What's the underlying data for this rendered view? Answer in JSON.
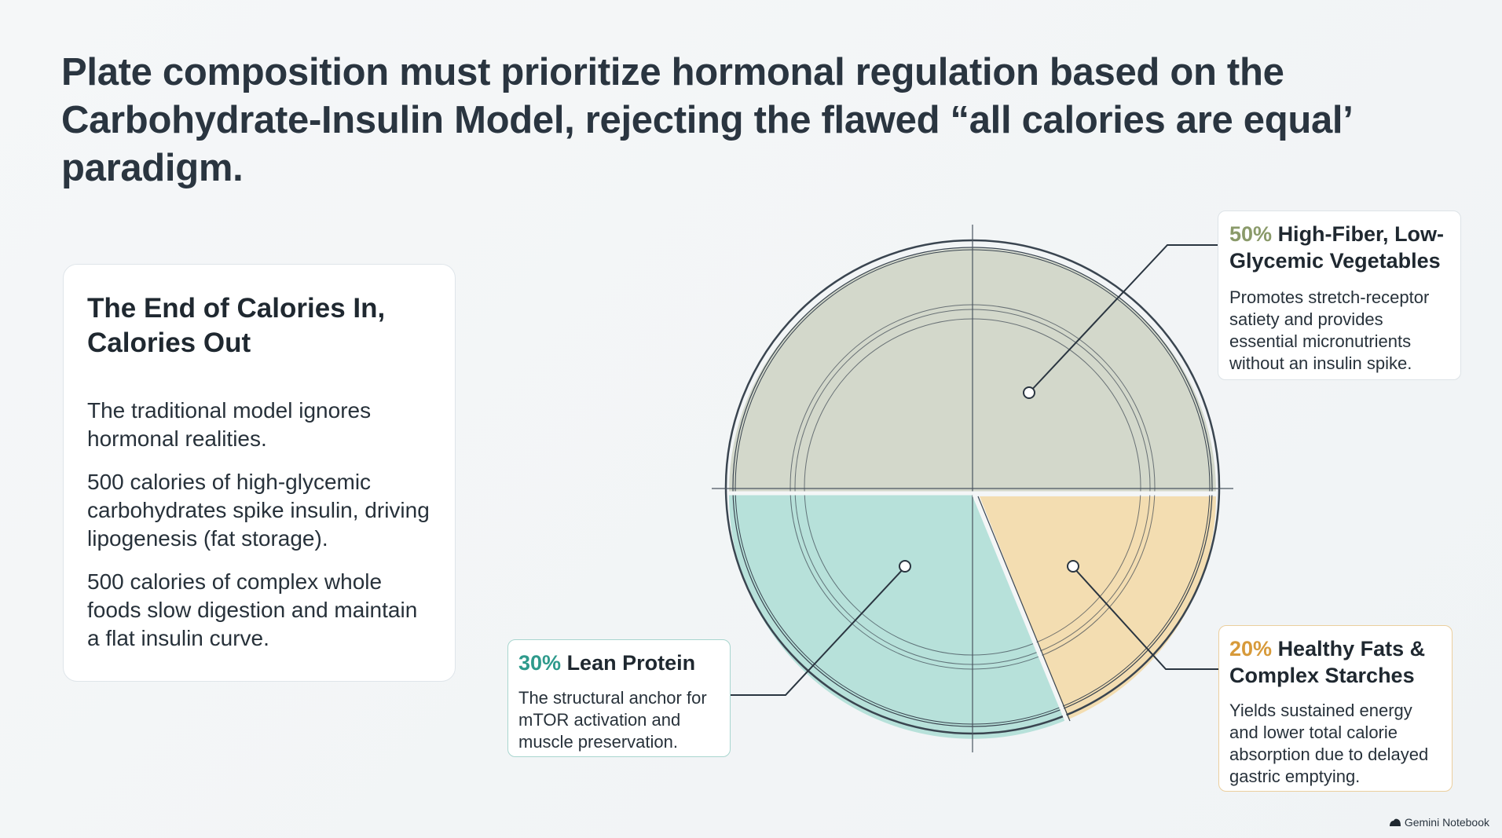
{
  "title": "Plate composition must prioritize hormonal regulation based on the Carbohydrate-Insulin Model, rejecting the flawed “all calories are equal’ paradigm.",
  "left_card": {
    "heading": "The End of Calories In, Calories Out",
    "paragraphs": [
      "The traditional model ignores hormonal realities.",
      "500 calories of high-glycemic carbohydrates spike insulin, driving lipogenesis (fat storage).",
      "500 calories of complex whole foods slow digestion and maintain a flat insulin curve."
    ]
  },
  "plate": {
    "segments": [
      {
        "name": "High-Fiber, Low-Glycemic Vegetables",
        "percent": 50,
        "color": "#d3d8cb"
      },
      {
        "name": "Lean Protein",
        "percent": 30,
        "color": "#b7e1da"
      },
      {
        "name": "Healthy Fats & Complex Starches",
        "percent": 20,
        "color": "#f3ddb1"
      }
    ]
  },
  "callouts": {
    "vegetables": {
      "percent_label": "50%",
      "title": "High-Fiber, Low-Glycemic Vegetables",
      "body": "Promotes stretch-receptor satiety and provides essential micronutrients without an insulin spike.",
      "accent": "#8a9a6a"
    },
    "protein": {
      "percent_label": "30%",
      "title": "Lean Protein",
      "body": "The structural anchor for mTOR activation and muscle preservation.",
      "accent": "#2e9a8c"
    },
    "fats": {
      "percent_label": "20%",
      "title": "Healthy Fats & Complex Starches",
      "body": "Yields sustained energy and lower total calorie absorption due to delayed gastric emptying.",
      "accent": "#d79a3a"
    }
  },
  "branding": {
    "label": "Gemini Notebook",
    "icon": "cloud-icon"
  }
}
